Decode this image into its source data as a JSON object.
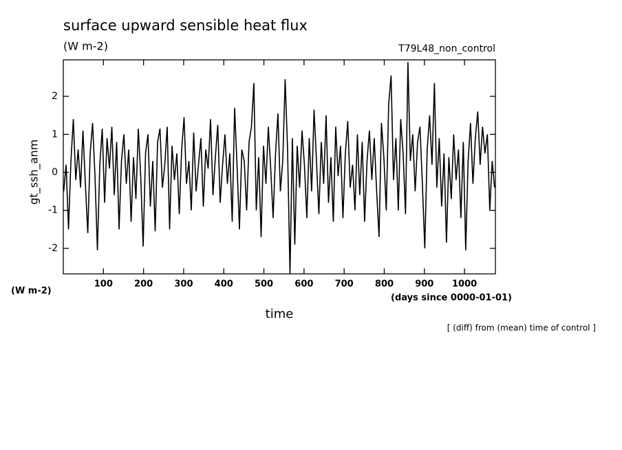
{
  "chart_data": {
    "type": "line",
    "title": "surface upward sensible heat flux",
    "units": "(W m-2)",
    "run_label": "T79L48_non_control",
    "y_label": "gt_ssh_anm",
    "y_units": "(W m-2)",
    "x_label": "time",
    "x_units": "(days since 0000-01-01)",
    "note": "[ (diff) from (mean) time of control ]",
    "color": "#000000",
    "xlim": [
      0,
      1077
    ],
    "ylim": [
      -2.67,
      2.96
    ],
    "xticks": [
      100,
      200,
      300,
      400,
      500,
      600,
      700,
      800,
      900,
      1000
    ],
    "yticks": [
      -2,
      -1,
      0,
      1,
      2
    ],
    "x": [
      1,
      7,
      13,
      19,
      25,
      31,
      37,
      43,
      49,
      55,
      61,
      67,
      73,
      79,
      85,
      91,
      97,
      103,
      109,
      115,
      121,
      127,
      133,
      139,
      145,
      151,
      157,
      163,
      169,
      175,
      181,
      187,
      193,
      199,
      205,
      211,
      217,
      223,
      229,
      235,
      241,
      247,
      253,
      259,
      265,
      271,
      277,
      283,
      289,
      295,
      301,
      307,
      313,
      319,
      325,
      331,
      337,
      343,
      349,
      355,
      361,
      367,
      373,
      379,
      385,
      391,
      397,
      403,
      409,
      415,
      421,
      427,
      433,
      439,
      445,
      451,
      457,
      463,
      469,
      475,
      481,
      487,
      493,
      499,
      505,
      511,
      517,
      523,
      529,
      535,
      541,
      547,
      553,
      559,
      565,
      571,
      577,
      583,
      589,
      595,
      601,
      607,
      613,
      619,
      625,
      631,
      637,
      643,
      649,
      655,
      661,
      667,
      673,
      679,
      685,
      691,
      697,
      703,
      709,
      715,
      721,
      727,
      733,
      739,
      745,
      751,
      757,
      763,
      769,
      775,
      781,
      787,
      793,
      799,
      805,
      811,
      817,
      823,
      829,
      835,
      841,
      847,
      853,
      859,
      865,
      871,
      877,
      883,
      889,
      895,
      901,
      907,
      913,
      919,
      925,
      931,
      937,
      943,
      949,
      955,
      961,
      967,
      973,
      979,
      985,
      991,
      997,
      1003,
      1009,
      1015,
      1021,
      1027,
      1033,
      1039,
      1045,
      1051,
      1057,
      1063,
      1069,
      1075
    ],
    "values": [
      -0.5,
      0.2,
      -1.5,
      0.3,
      1.4,
      -0.2,
      0.6,
      -0.4,
      1.1,
      -0.3,
      -1.6,
      0.5,
      1.3,
      -0.1,
      -2.05,
      0.2,
      1.15,
      -0.8,
      0.9,
      0.1,
      1.2,
      -0.6,
      0.8,
      -1.5,
      0.3,
      1.0,
      -0.3,
      0.6,
      -1.3,
      0.4,
      -0.7,
      1.15,
      -0.1,
      -1.95,
      0.5,
      1.0,
      -0.9,
      0.3,
      -1.55,
      0.8,
      1.15,
      -0.4,
      0.2,
      1.2,
      -1.5,
      0.7,
      -0.2,
      0.5,
      -1.1,
      0.6,
      1.45,
      -0.3,
      0.3,
      -1.0,
      1.05,
      -0.5,
      0.2,
      0.9,
      -0.9,
      0.6,
      0.1,
      1.4,
      -0.6,
      0.4,
      1.25,
      -0.8,
      0.2,
      1.0,
      -0.3,
      0.5,
      -1.3,
      1.7,
      0.2,
      -1.5,
      0.6,
      0.3,
      -1.0,
      0.8,
      1.2,
      2.35,
      -1.0,
      0.4,
      -1.7,
      0.7,
      -0.3,
      1.2,
      0.1,
      -1.2,
      0.5,
      1.55,
      -0.5,
      0.3,
      2.45,
      0.6,
      -2.67,
      0.9,
      -1.9,
      0.7,
      -0.4,
      1.1,
      0.2,
      -1.2,
      0.9,
      -0.5,
      1.65,
      0.3,
      -1.1,
      0.8,
      -0.3,
      1.5,
      -0.8,
      0.4,
      -1.3,
      1.2,
      -0.1,
      0.7,
      -1.2,
      0.5,
      1.35,
      -0.4,
      0.2,
      -1.0,
      1.0,
      -0.6,
      0.8,
      -1.3,
      0.3,
      1.1,
      -0.2,
      0.9,
      -0.5,
      -1.7,
      1.3,
      0.4,
      -1.0,
      1.8,
      2.55,
      -0.2,
      0.9,
      -1.0,
      1.4,
      0.5,
      -1.1,
      2.9,
      0.3,
      1.0,
      -0.5,
      0.8,
      1.2,
      -0.3,
      -2.0,
      0.6,
      1.5,
      0.2,
      2.35,
      -0.4,
      0.9,
      -0.9,
      0.5,
      -1.85,
      0.4,
      -0.7,
      1.0,
      -0.2,
      0.6,
      -1.2,
      0.8,
      -2.05,
      0.3,
      1.3,
      -0.3,
      0.9,
      1.6,
      0.2,
      1.2,
      0.5,
      1.0,
      -1.0,
      0.3,
      -0.4
    ]
  }
}
